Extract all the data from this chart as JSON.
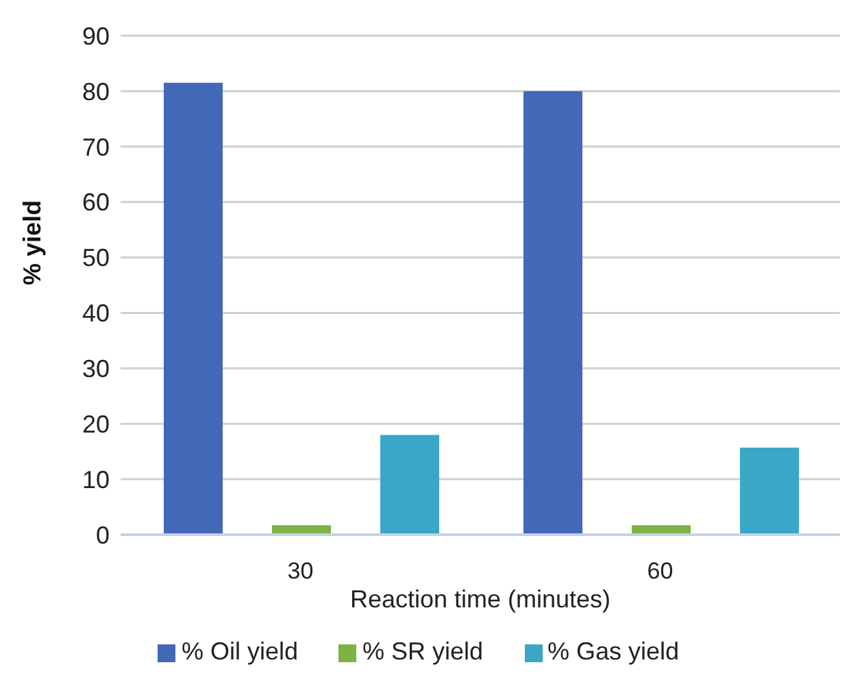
{
  "chart_data": {
    "type": "bar",
    "xlabel": "Reaction time (minutes)",
    "ylabel": "% yield",
    "categories": [
      "30",
      "60"
    ],
    "series": [
      {
        "name": "% Oil yield",
        "color": "#4169b8",
        "values": [
          81.5,
          80
        ]
      },
      {
        "name": "% SR yield",
        "color": "#7cb342",
        "values": [
          1.7,
          1.7
        ]
      },
      {
        "name": "% Gas yield",
        "color": "#3aa6c8",
        "values": [
          18,
          15.7
        ]
      }
    ],
    "ylim": [
      0,
      90
    ],
    "yticks": [
      0,
      10,
      20,
      30,
      40,
      50,
      60,
      70,
      80,
      90
    ],
    "grid": "y",
    "legend": "bottom"
  }
}
